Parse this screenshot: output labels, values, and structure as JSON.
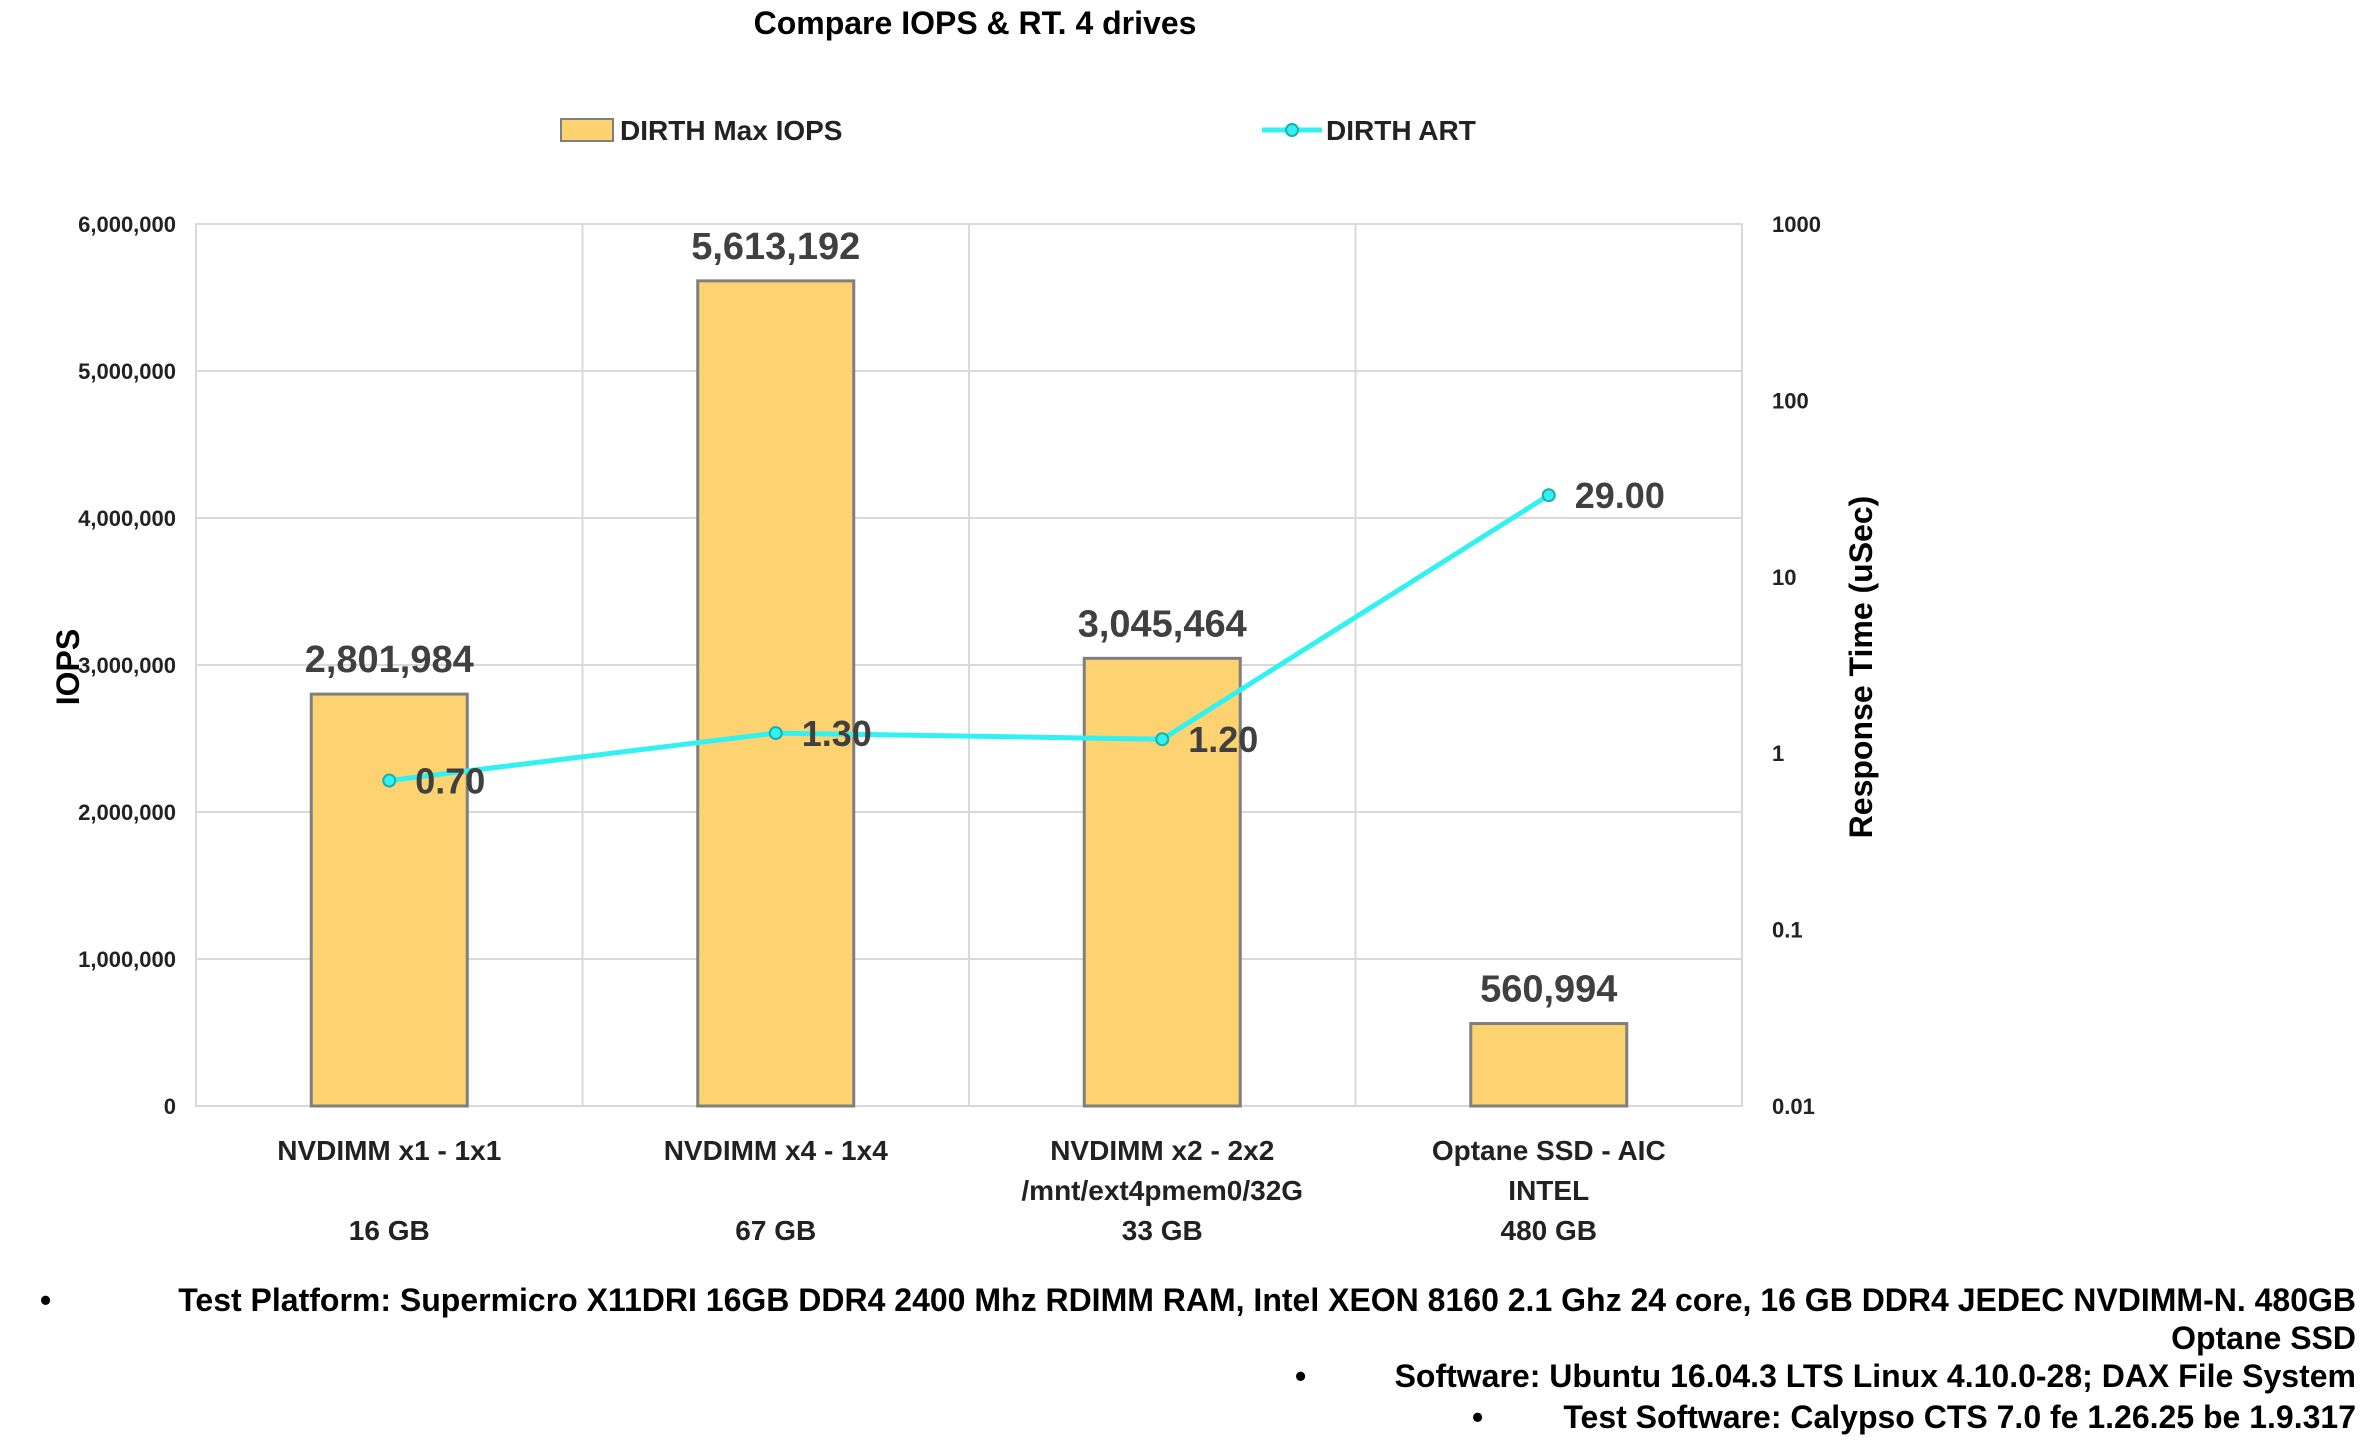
{
  "chart_data": {
    "type": "bar",
    "title": "Compare IOPS & RT. 4 drives",
    "categories": [
      {
        "lines": [
          "NVDIMM x1 - 1x1",
          "",
          "16 GB"
        ]
      },
      {
        "lines": [
          "NVDIMM x4 - 1x4",
          "",
          "67 GB"
        ]
      },
      {
        "lines": [
          "NVDIMM x2 - 2x2",
          "/mnt/ext4pmem0/32G",
          "33 GB"
        ]
      },
      {
        "lines": [
          "Optane SSD - AIC",
          "INTEL",
          "480 GB"
        ]
      }
    ],
    "series": [
      {
        "name": "DIRTH Max IOPS",
        "type": "bar",
        "axis": "left",
        "color": "#FCD370",
        "edge": "#7F7F7F",
        "values": [
          2801984,
          5613192,
          3045464,
          560994
        ],
        "labels": [
          "2,801,984",
          "5,613,192",
          "3,045,464",
          "560,994"
        ]
      },
      {
        "name": "DIRTH ART",
        "type": "line",
        "axis": "right",
        "color": "#33F1F1",
        "values": [
          0.7,
          1.3,
          1.2,
          29.0
        ],
        "labels": [
          "0.70",
          "1.30",
          "1.20",
          "29.00"
        ]
      }
    ],
    "ylabel": "IOPS",
    "ylim": [
      0,
      6000000
    ],
    "yticks": [
      "0",
      "1,000,000",
      "2,000,000",
      "3,000,000",
      "4,000,000",
      "5,000,000",
      "6,000,000"
    ],
    "y2label": "Response Time (uSec)",
    "y2lim": [
      0.01,
      1000
    ],
    "y2scale": "log",
    "y2ticks": [
      "0.01",
      "0.1",
      "1",
      "10",
      "100",
      "1000"
    ],
    "grid": true,
    "legend": "top"
  },
  "notes": [
    "Test Platform:  Supermicro X11DRI 16GB DDR4 2400 Mhz RDIMM RAM, Intel XEON 8160 2.1 Ghz 24 core, 16 GB DDR4 JEDEC NVDIMM-N. 480GB",
    "Optane SSD",
    "Software:  Ubuntu 16.04.3 LTS Linux 4.10.0-28; DAX File System",
    "Test Software:  Calypso CTS 7.0 fe 1.26.25 be 1.9.317"
  ],
  "bullet": "•"
}
